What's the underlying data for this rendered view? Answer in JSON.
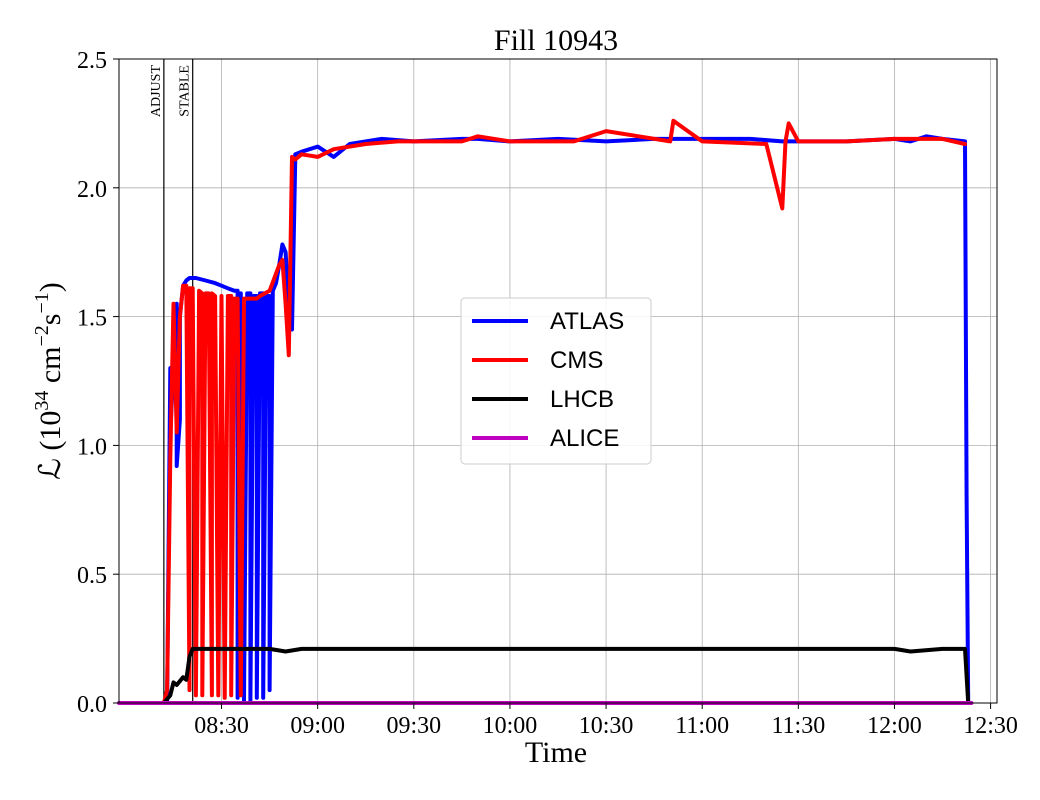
{
  "chart_data": {
    "type": "line",
    "title": "Fill 10943",
    "xlabel": "Time",
    "ylabel_main": "ℒ (10",
    "ylabel_exp1": "34",
    "ylabel_mid": " cm",
    "ylabel_exp2": "−2",
    "ylabel_s": "s",
    "ylabel_exp3": "−1",
    "ylabel_close": ")",
    "xlim": [
      "07:58",
      "12:32"
    ],
    "ylim": [
      0,
      2.5
    ],
    "grid": true,
    "legend_position": "center",
    "x_ticks": [
      "08:30",
      "09:00",
      "09:30",
      "10:00",
      "10:30",
      "11:00",
      "11:30",
      "12:00",
      "12:30"
    ],
    "y_ticks": [
      "0.0",
      "0.5",
      "1.0",
      "1.5",
      "2.0",
      "2.5"
    ],
    "markers": [
      {
        "time": "08:12",
        "label": "ADJUST"
      },
      {
        "time": "08:21",
        "label": "STABLE"
      }
    ],
    "series": [
      {
        "name": "ATLAS",
        "color": "#0000ff",
        "x": [
          "08:13",
          "08:14",
          "08:14",
          "08:16",
          "08:16",
          "08:17",
          "08:17",
          "08:18",
          "08:19",
          "08:20",
          "08:22",
          "08:25",
          "08:28",
          "08:30",
          "08:32",
          "08:34",
          "08:35",
          "08:35",
          "08:36",
          "08:37",
          "08:38",
          "08:39",
          "08:39",
          "08:40",
          "08:41",
          "08:41",
          "08:42",
          "08:43",
          "08:43",
          "08:44",
          "08:45",
          "08:45",
          "08:46",
          "08:47",
          "08:48",
          "08:49",
          "08:50",
          "08:51",
          "08:52",
          "08:53",
          "08:53",
          "08:55",
          "09:00",
          "09:05",
          "09:10",
          "09:20",
          "09:30",
          "09:45",
          "09:50",
          "10:00",
          "10:15",
          "10:30",
          "10:45",
          "11:00",
          "11:15",
          "11:25",
          "11:30",
          "11:45",
          "12:00",
          "12:05",
          "12:10",
          "12:15",
          "12:22",
          "12:22.5",
          "12:23"
        ],
        "y": [
          0,
          1.3,
          1.05,
          1.55,
          0.92,
          1.1,
          1.5,
          1.62,
          1.64,
          1.65,
          1.65,
          1.64,
          1.63,
          1.62,
          1.61,
          1.6,
          1.6,
          0.02,
          1.59,
          0.01,
          1.59,
          1.59,
          0.01,
          1.58,
          1.58,
          0.02,
          1.59,
          1.59,
          0.02,
          1.58,
          1.58,
          0.05,
          1.6,
          1.63,
          1.7,
          1.78,
          1.75,
          1.55,
          1.45,
          2.1,
          2.13,
          2.14,
          2.16,
          2.12,
          2.17,
          2.19,
          2.18,
          2.19,
          2.19,
          2.18,
          2.19,
          2.18,
          2.19,
          2.19,
          2.19,
          2.18,
          2.18,
          2.18,
          2.19,
          2.18,
          2.2,
          2.19,
          2.18,
          0.8,
          0
        ]
      },
      {
        "name": "CMS",
        "color": "#ff0000",
        "x": [
          "08:12",
          "08:13",
          "08:14",
          "08:15",
          "08:16",
          "08:17",
          "08:18",
          "08:19",
          "08:20",
          "08:20",
          "08:21",
          "08:22",
          "08:23",
          "08:24",
          "08:24",
          "08:25",
          "08:26",
          "08:27",
          "08:27",
          "08:28",
          "08:29",
          "08:30",
          "08:30",
          "08:31",
          "08:32",
          "08:33",
          "08:33",
          "08:34",
          "08:35",
          "08:36",
          "08:37",
          "08:37",
          "08:38",
          "08:39",
          "08:40",
          "08:41",
          "08:41",
          "08:42",
          "08:45",
          "08:48",
          "08:49",
          "08:50",
          "08:51",
          "08:52",
          "08:53",
          "08:54",
          "08:55",
          "09:00",
          "09:05",
          "09:15",
          "09:25",
          "09:45",
          "09:50",
          "10:00",
          "10:20",
          "10:30",
          "10:50",
          "10:51",
          "11:00",
          "11:20",
          "11:25",
          "11:26",
          "11:27",
          "11:30",
          "11:45",
          "12:00",
          "12:15",
          "12:22"
        ],
        "y": [
          0,
          0.05,
          0.95,
          1.55,
          1.05,
          1.5,
          1.62,
          1.62,
          0.05,
          1.61,
          1.61,
          0.03,
          1.6,
          1.59,
          0.03,
          1.59,
          1.59,
          0.03,
          1.59,
          1.58,
          0.03,
          1.58,
          1.58,
          0.02,
          1.58,
          1.58,
          0.03,
          1.57,
          1.57,
          0.03,
          1.57,
          1.57,
          1.57,
          1.57,
          1.57,
          1.57,
          1.57,
          1.58,
          1.6,
          1.7,
          1.72,
          1.55,
          1.35,
          2.12,
          2.11,
          2.12,
          2.13,
          2.12,
          2.15,
          2.17,
          2.18,
          2.18,
          2.2,
          2.18,
          2.18,
          2.22,
          2.18,
          2.26,
          2.18,
          2.17,
          1.92,
          2.18,
          2.25,
          2.18,
          2.18,
          2.19,
          2.19,
          2.17
        ]
      },
      {
        "name": "LHCB",
        "color": "#000000",
        "x": [
          "08:12",
          "08:14",
          "08:15",
          "08:16",
          "08:18",
          "08:19",
          "08:20",
          "08:21",
          "08:25",
          "08:30",
          "08:40",
          "08:45",
          "08:50",
          "08:55",
          "09:00",
          "09:30",
          "10:00",
          "10:30",
          "11:00",
          "11:30",
          "12:00",
          "12:05",
          "12:15",
          "12:22",
          "12:23"
        ],
        "y": [
          0,
          0.03,
          0.08,
          0.07,
          0.1,
          0.09,
          0.18,
          0.21,
          0.21,
          0.21,
          0.21,
          0.21,
          0.2,
          0.21,
          0.21,
          0.21,
          0.21,
          0.21,
          0.21,
          0.21,
          0.21,
          0.2,
          0.21,
          0.21,
          0
        ]
      },
      {
        "name": "ALICE",
        "color": "#c000c0",
        "x": [
          "07:58",
          "12:24"
        ],
        "y": [
          0,
          0
        ]
      }
    ]
  }
}
